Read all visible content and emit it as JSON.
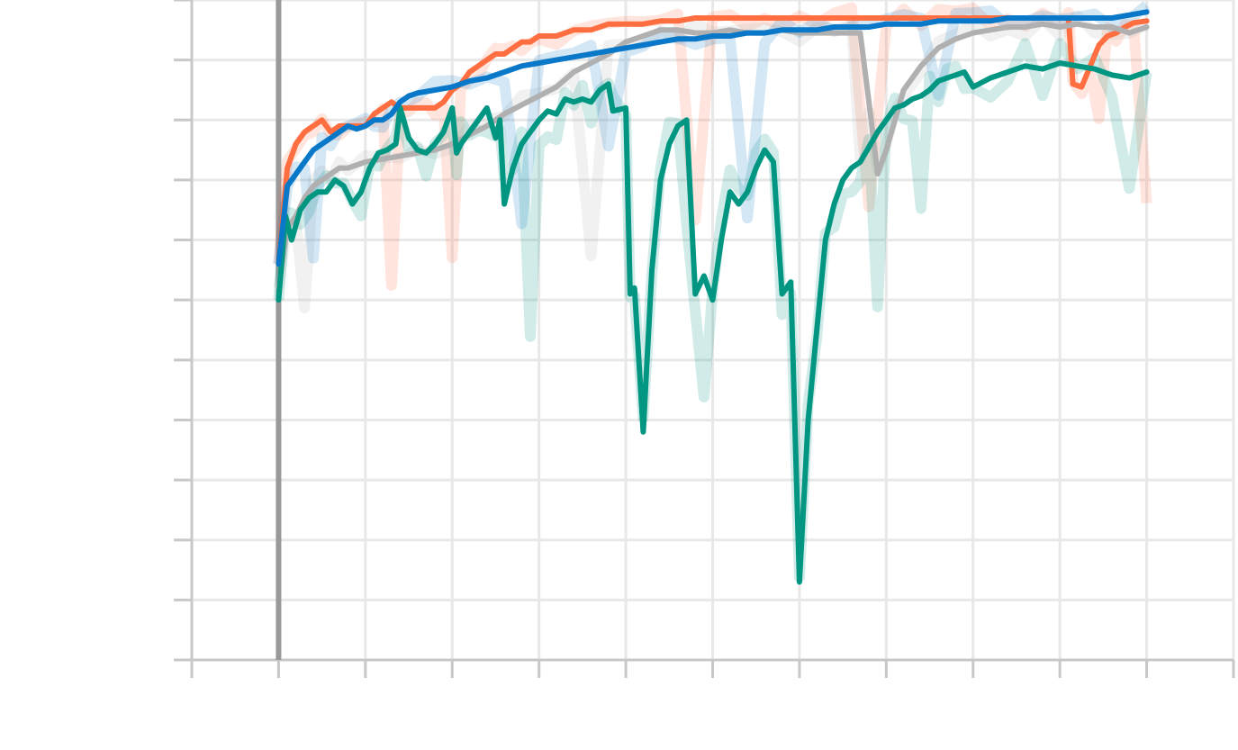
{
  "chart_data": {
    "type": "line",
    "title": "",
    "xlabel": "",
    "ylabel": "",
    "xlim": [
      -1,
      11
    ],
    "ylim": [
      0,
      11
    ],
    "grid": true,
    "x_ticks": [
      -1,
      0,
      1,
      2,
      3,
      4,
      5,
      6,
      7,
      8,
      9,
      10,
      11
    ],
    "y_ticks": [
      0,
      1,
      2,
      3,
      4,
      5,
      6,
      7,
      8,
      9,
      10,
      11
    ],
    "vertical_marker_x": 0,
    "legend": "none",
    "colors": {
      "orange": "#ff6e40",
      "gray": "#b0b0b0",
      "teal": "#009682",
      "blue": "#0a78c8",
      "grid": "#e8e8e8",
      "axis": "#c8c8c8",
      "marker": "#999999"
    },
    "series": [
      {
        "color_key": "orange",
        "points": [
          [
            0.0,
            6.6
          ],
          [
            0.1,
            8.2
          ],
          [
            0.2,
            8.6
          ],
          [
            0.3,
            8.8
          ],
          [
            0.4,
            8.9
          ],
          [
            0.5,
            9.0
          ],
          [
            0.6,
            8.8
          ],
          [
            0.7,
            8.9
          ],
          [
            0.8,
            8.9
          ],
          [
            0.9,
            8.9
          ],
          [
            1.0,
            8.9
          ],
          [
            1.1,
            9.1
          ],
          [
            1.2,
            9.2
          ],
          [
            1.3,
            9.3
          ],
          [
            1.4,
            9.2
          ],
          [
            1.5,
            9.2
          ],
          [
            1.6,
            9.2
          ],
          [
            1.7,
            9.2
          ],
          [
            1.8,
            9.2
          ],
          [
            1.9,
            9.3
          ],
          [
            2.0,
            9.5
          ],
          [
            2.1,
            9.6
          ],
          [
            2.2,
            9.8
          ],
          [
            2.3,
            9.9
          ],
          [
            2.4,
            10.0
          ],
          [
            2.5,
            10.1
          ],
          [
            2.6,
            10.1
          ],
          [
            2.7,
            10.2
          ],
          [
            2.8,
            10.3
          ],
          [
            2.9,
            10.3
          ],
          [
            3.0,
            10.4
          ],
          [
            3.2,
            10.4
          ],
          [
            3.4,
            10.5
          ],
          [
            3.6,
            10.5
          ],
          [
            3.8,
            10.6
          ],
          [
            4.0,
            10.6
          ],
          [
            4.2,
            10.6
          ],
          [
            4.4,
            10.65
          ],
          [
            4.6,
            10.65
          ],
          [
            4.8,
            10.7
          ],
          [
            5.0,
            10.7
          ],
          [
            5.2,
            10.7
          ],
          [
            5.4,
            10.7
          ],
          [
            5.6,
            10.7
          ],
          [
            5.8,
            10.7
          ],
          [
            6.0,
            10.7
          ],
          [
            6.2,
            10.7
          ],
          [
            6.4,
            10.7
          ],
          [
            6.6,
            10.7
          ],
          [
            6.8,
            10.7
          ],
          [
            7.0,
            10.7
          ],
          [
            7.2,
            10.7
          ],
          [
            7.4,
            10.7
          ],
          [
            7.6,
            10.7
          ],
          [
            7.8,
            10.7
          ],
          [
            8.0,
            10.7
          ],
          [
            8.2,
            10.7
          ],
          [
            8.4,
            10.7
          ],
          [
            8.6,
            10.7
          ],
          [
            8.8,
            10.7
          ],
          [
            9.0,
            10.7
          ],
          [
            9.1,
            10.7
          ],
          [
            9.15,
            9.6
          ],
          [
            9.25,
            9.55
          ],
          [
            9.35,
            9.9
          ],
          [
            9.45,
            10.25
          ],
          [
            9.55,
            10.4
          ],
          [
            9.65,
            10.45
          ],
          [
            9.75,
            10.55
          ],
          [
            9.85,
            10.62
          ],
          [
            10.0,
            10.65
          ]
        ]
      },
      {
        "color_key": "gray",
        "points": [
          [
            0.0,
            6.2
          ],
          [
            0.1,
            7.2
          ],
          [
            0.2,
            7.4
          ],
          [
            0.3,
            7.7
          ],
          [
            0.4,
            7.9
          ],
          [
            0.5,
            8.0
          ],
          [
            0.6,
            8.1
          ],
          [
            0.7,
            8.2
          ],
          [
            0.8,
            8.2
          ],
          [
            0.9,
            8.25
          ],
          [
            1.0,
            8.3
          ],
          [
            1.2,
            8.35
          ],
          [
            1.4,
            8.4
          ],
          [
            1.6,
            8.45
          ],
          [
            1.8,
            8.5
          ],
          [
            2.0,
            8.6
          ],
          [
            2.2,
            8.75
          ],
          [
            2.4,
            8.9
          ],
          [
            2.6,
            9.1
          ],
          [
            2.8,
            9.25
          ],
          [
            3.0,
            9.4
          ],
          [
            3.2,
            9.55
          ],
          [
            3.4,
            9.8
          ],
          [
            3.6,
            9.95
          ],
          [
            3.8,
            10.1
          ],
          [
            4.0,
            10.3
          ],
          [
            4.2,
            10.4
          ],
          [
            4.4,
            10.5
          ],
          [
            4.6,
            10.5
          ],
          [
            4.8,
            10.45
          ],
          [
            5.0,
            10.45
          ],
          [
            5.2,
            10.5
          ],
          [
            5.4,
            10.45
          ],
          [
            5.6,
            10.45
          ],
          [
            5.8,
            10.5
          ],
          [
            6.0,
            10.45
          ],
          [
            6.2,
            10.45
          ],
          [
            6.4,
            10.45
          ],
          [
            6.6,
            10.45
          ],
          [
            6.7,
            10.45
          ],
          [
            6.8,
            9.3
          ],
          [
            6.9,
            8.1
          ],
          [
            7.0,
            8.5
          ],
          [
            7.1,
            9.0
          ],
          [
            7.2,
            9.5
          ],
          [
            7.4,
            9.9
          ],
          [
            7.6,
            10.2
          ],
          [
            7.8,
            10.35
          ],
          [
            8.0,
            10.45
          ],
          [
            8.2,
            10.5
          ],
          [
            8.4,
            10.55
          ],
          [
            8.6,
            10.55
          ],
          [
            8.8,
            10.6
          ],
          [
            9.0,
            10.55
          ],
          [
            9.2,
            10.6
          ],
          [
            9.4,
            10.55
          ],
          [
            9.6,
            10.55
          ],
          [
            9.8,
            10.45
          ],
          [
            10.0,
            10.55
          ]
        ]
      },
      {
        "color_key": "teal",
        "points": [
          [
            0.0,
            6.0
          ],
          [
            0.08,
            7.4
          ],
          [
            0.15,
            7.0
          ],
          [
            0.25,
            7.5
          ],
          [
            0.35,
            7.7
          ],
          [
            0.45,
            7.8
          ],
          [
            0.55,
            7.8
          ],
          [
            0.65,
            8.0
          ],
          [
            0.75,
            7.9
          ],
          [
            0.85,
            7.6
          ],
          [
            0.95,
            7.8
          ],
          [
            1.05,
            8.2
          ],
          [
            1.15,
            8.45
          ],
          [
            1.25,
            8.5
          ],
          [
            1.35,
            8.6
          ],
          [
            1.4,
            9.2
          ],
          [
            1.5,
            8.7
          ],
          [
            1.6,
            8.5
          ],
          [
            1.7,
            8.45
          ],
          [
            1.8,
            8.6
          ],
          [
            1.9,
            8.8
          ],
          [
            2.0,
            9.2
          ],
          [
            2.05,
            8.45
          ],
          [
            2.1,
            8.6
          ],
          [
            2.2,
            8.8
          ],
          [
            2.3,
            9.0
          ],
          [
            2.4,
            9.2
          ],
          [
            2.5,
            8.7
          ],
          [
            2.55,
            9.0
          ],
          [
            2.6,
            7.6
          ],
          [
            2.7,
            8.2
          ],
          [
            2.8,
            8.6
          ],
          [
            2.9,
            8.8
          ],
          [
            3.0,
            9.0
          ],
          [
            3.1,
            9.15
          ],
          [
            3.2,
            9.1
          ],
          [
            3.3,
            9.35
          ],
          [
            3.4,
            9.3
          ],
          [
            3.5,
            9.35
          ],
          [
            3.6,
            9.3
          ],
          [
            3.7,
            9.5
          ],
          [
            3.8,
            9.6
          ],
          [
            3.85,
            9.15
          ],
          [
            4.0,
            9.2
          ],
          [
            4.05,
            6.1
          ],
          [
            4.1,
            6.2
          ],
          [
            4.2,
            3.8
          ],
          [
            4.3,
            6.5
          ],
          [
            4.4,
            8.0
          ],
          [
            4.5,
            8.6
          ],
          [
            4.6,
            8.9
          ],
          [
            4.7,
            9.0
          ],
          [
            4.8,
            6.1
          ],
          [
            4.9,
            6.4
          ],
          [
            5.0,
            6.0
          ],
          [
            5.1,
            7.0
          ],
          [
            5.2,
            7.8
          ],
          [
            5.3,
            7.6
          ],
          [
            5.4,
            7.8
          ],
          [
            5.5,
            8.2
          ],
          [
            5.6,
            8.5
          ],
          [
            5.7,
            8.3
          ],
          [
            5.8,
            6.1
          ],
          [
            5.9,
            6.3
          ],
          [
            6.0,
            1.3
          ],
          [
            6.1,
            4.0
          ],
          [
            6.2,
            5.5
          ],
          [
            6.3,
            7.0
          ],
          [
            6.4,
            7.6
          ],
          [
            6.5,
            8.0
          ],
          [
            6.6,
            8.2
          ],
          [
            6.7,
            8.3
          ],
          [
            6.8,
            8.55
          ],
          [
            6.9,
            8.8
          ],
          [
            7.0,
            9.0
          ],
          [
            7.1,
            9.2
          ],
          [
            7.2,
            9.25
          ],
          [
            7.3,
            9.35
          ],
          [
            7.4,
            9.4
          ],
          [
            7.5,
            9.5
          ],
          [
            7.6,
            9.65
          ],
          [
            7.7,
            9.7
          ],
          [
            7.8,
            9.75
          ],
          [
            7.9,
            9.8
          ],
          [
            8.0,
            9.55
          ],
          [
            8.2,
            9.7
          ],
          [
            8.4,
            9.8
          ],
          [
            8.6,
            9.9
          ],
          [
            8.8,
            9.85
          ],
          [
            9.0,
            9.95
          ],
          [
            9.2,
            9.9
          ],
          [
            9.4,
            9.85
          ],
          [
            9.6,
            9.75
          ],
          [
            9.8,
            9.7
          ],
          [
            10.0,
            9.8
          ]
        ]
      },
      {
        "color_key": "blue",
        "points": [
          [
            0.0,
            6.6
          ],
          [
            0.1,
            7.9
          ],
          [
            0.2,
            8.1
          ],
          [
            0.3,
            8.3
          ],
          [
            0.4,
            8.5
          ],
          [
            0.5,
            8.6
          ],
          [
            0.6,
            8.7
          ],
          [
            0.7,
            8.8
          ],
          [
            0.8,
            8.9
          ],
          [
            0.9,
            8.85
          ],
          [
            1.0,
            8.9
          ],
          [
            1.1,
            9.0
          ],
          [
            1.2,
            9.0
          ],
          [
            1.3,
            9.1
          ],
          [
            1.4,
            9.3
          ],
          [
            1.5,
            9.4
          ],
          [
            1.6,
            9.45
          ],
          [
            1.8,
            9.5
          ],
          [
            2.0,
            9.55
          ],
          [
            2.2,
            9.65
          ],
          [
            2.4,
            9.7
          ],
          [
            2.6,
            9.8
          ],
          [
            2.8,
            9.9
          ],
          [
            3.0,
            9.95
          ],
          [
            3.2,
            10.0
          ],
          [
            3.4,
            10.05
          ],
          [
            3.6,
            10.1
          ],
          [
            3.8,
            10.15
          ],
          [
            4.0,
            10.2
          ],
          [
            4.2,
            10.25
          ],
          [
            4.4,
            10.3
          ],
          [
            4.6,
            10.35
          ],
          [
            4.8,
            10.35
          ],
          [
            5.0,
            10.4
          ],
          [
            5.2,
            10.4
          ],
          [
            5.4,
            10.45
          ],
          [
            5.6,
            10.45
          ],
          [
            5.8,
            10.5
          ],
          [
            6.0,
            10.5
          ],
          [
            6.2,
            10.5
          ],
          [
            6.4,
            10.55
          ],
          [
            6.6,
            10.55
          ],
          [
            6.8,
            10.55
          ],
          [
            7.0,
            10.6
          ],
          [
            7.2,
            10.6
          ],
          [
            7.4,
            10.6
          ],
          [
            7.6,
            10.65
          ],
          [
            7.8,
            10.65
          ],
          [
            8.0,
            10.65
          ],
          [
            8.2,
            10.65
          ],
          [
            8.4,
            10.7
          ],
          [
            8.6,
            10.7
          ],
          [
            8.8,
            10.7
          ],
          [
            9.0,
            10.7
          ],
          [
            9.2,
            10.7
          ],
          [
            9.4,
            10.7
          ],
          [
            9.6,
            10.7
          ],
          [
            9.8,
            10.75
          ],
          [
            10.0,
            10.8
          ]
        ]
      }
    ]
  }
}
